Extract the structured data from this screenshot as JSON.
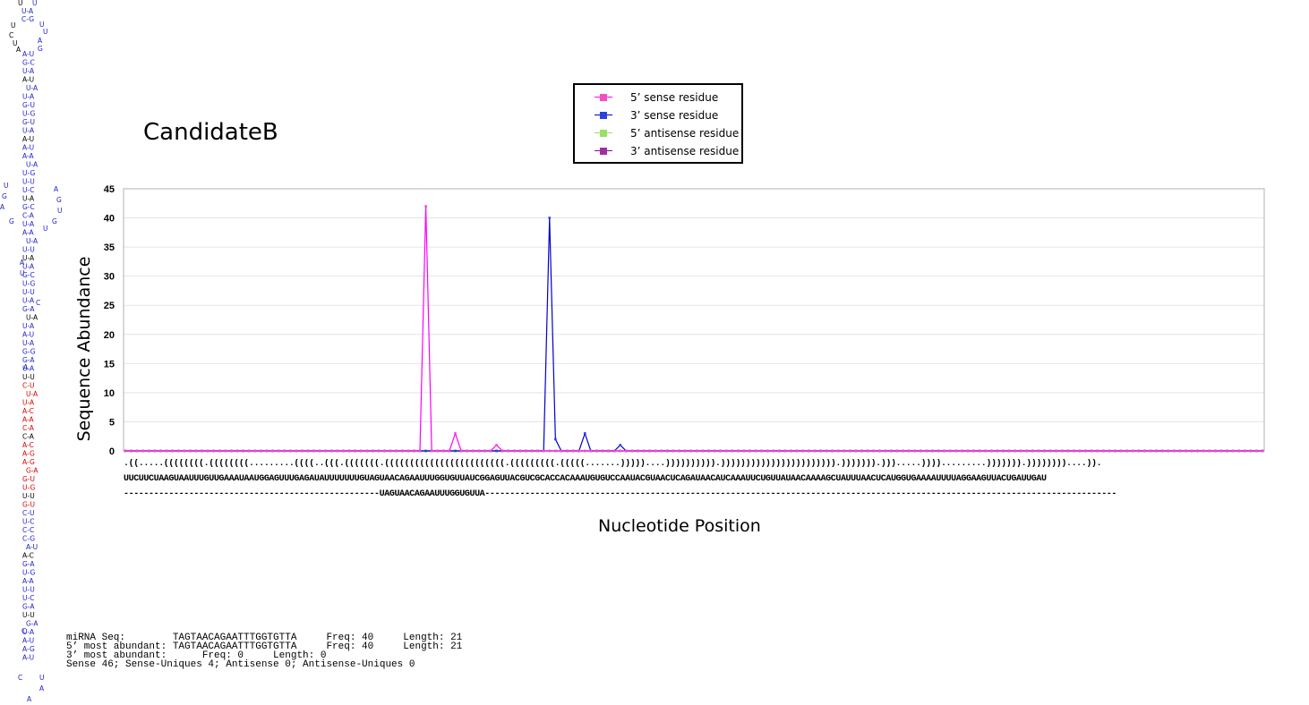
{
  "chart_data": {
    "type": "line",
    "title": "CandidateB",
    "xlabel": "Nucleotide Position",
    "ylabel": "Sequence Abundance",
    "ylim": [
      0,
      45
    ],
    "yticks": [
      0,
      5,
      10,
      15,
      20,
      25,
      30,
      35,
      40,
      45
    ],
    "x_count": 194,
    "grid": true,
    "legend_position": "top-center",
    "series": [
      {
        "name": "5’ sense residue",
        "color": "#ff00ff",
        "marker_color": "#f050c0",
        "points": [
          [
            51,
            42
          ],
          [
            56,
            3
          ],
          [
            63,
            1
          ]
        ]
      },
      {
        "name": "3’ sense residue",
        "color": "#0000cc",
        "marker_color": "#3040e0",
        "points": [
          [
            72,
            40
          ],
          [
            73,
            2
          ],
          [
            78,
            3
          ],
          [
            84,
            1
          ]
        ]
      },
      {
        "name": "5’ antisense residue",
        "color": "#99e066",
        "marker_color": "#99e066",
        "points": []
      },
      {
        "name": "3’ antisense residue",
        "color": "#990099",
        "marker_color": "#a030a0",
        "points": []
      }
    ]
  },
  "sequence": {
    "structure": ".((.....((((((((.((((((((.........((((..(((.(((((((.((((((((((((((((((((((((.(((((((((.(((((.......)))))....)))))))))).))))))))))))))))))))))).))))))).))).....)))).........))))))).))))))))....)).",
    "nucleotides": "UUCUUCUAAGUAAUUUGUUGAAAUAAUGGAGUUUGAGAUAUUUUUUUGUAGUAACAGAAUUUGGUGUUAUCGGAGUUACGUCGCACCACAAAUGUGUCCAAUACGUAACUCAGAUAACAUCAAAUUCUGUUAUAACAAAAGCUAUUUAACUCAUGGUGAAAAUUUUAGGAAGUUACUGAUUGAU",
    "mirna_prefix": "---------------------------------------------------",
    "mirna": "UAGUAACAGAAUUUGGUGUUA",
    "mirna_suffix": "------------------------------------------------------------------------------------------------------------------------------"
  },
  "info": {
    "line1": "miRNA Seq:        TAGTAACAGAATTTGGTGTTA     Freq: 40     Length: 21",
    "line2": "5’ most abundant: TAGTAACAGAATTTGGTGTTA     Freq: 40     Length: 21",
    "line3": "3’ most abundant:      Freq: 0     Length: 0",
    "line4": "Sense 46; Sense-Uniques 4; Antisense 0; Antisense-Uniques 0"
  },
  "hairpin": {
    "loop_labels": [
      "U",
      "U",
      "U-A",
      "C-G",
      "U",
      "U",
      "A",
      "G",
      "C",
      "U"
    ],
    "left_bases": "AGUAUUGUGUAAAUUUUUGCUAUUUUGUUUGUUAUGGUUCUUAACCAAAGGUUGCUCCA",
    "right_bases": "UCAUAAUGUAUUAAGUCACAAAAUAACGUAAAAUAGAAUUAACAAACGGAUGUUUCCGUCAGA",
    "highlight_colors": {
      "normal": "#000000",
      "blue": "#2020cc",
      "red": "#dd0000"
    }
  }
}
